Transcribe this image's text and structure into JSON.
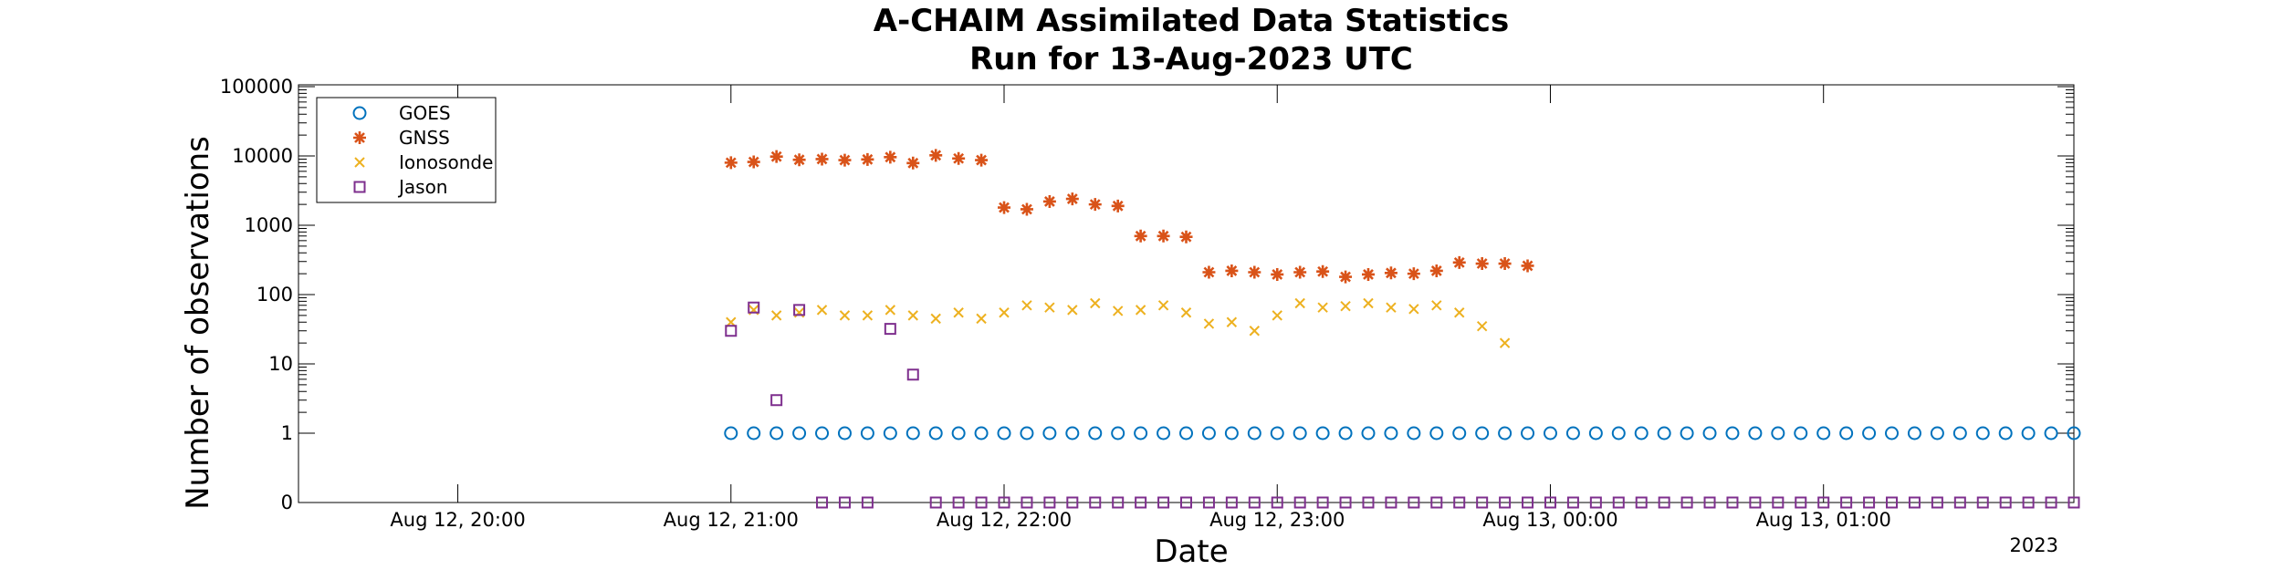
{
  "chart_data": {
    "type": "scatter",
    "title": "A-CHAIM Assimilated Data Statistics",
    "subtitle": "Run for 13-Aug-2023 UTC",
    "xlabel": "Date",
    "ylabel": "Number of observations",
    "x_year_label": "2023",
    "y_scale": "log",
    "y_zero_baseline": true,
    "grid": false,
    "legend_position": "top-left",
    "xlim": [
      "2023-08-12 19:25",
      "2023-08-13 01:55"
    ],
    "ylim": [
      0,
      100000
    ],
    "x_ticks": [
      "2023-08-12 20:00",
      "2023-08-12 21:00",
      "2023-08-12 22:00",
      "2023-08-12 23:00",
      "2023-08-13 00:00",
      "2023-08-13 01:00"
    ],
    "x_tick_labels": [
      "Aug 12, 20:00",
      "Aug 12, 21:00",
      "Aug 12, 22:00",
      "Aug 12, 23:00",
      "Aug 13, 00:00",
      "Aug 13, 01:00"
    ],
    "y_ticks": [
      0,
      1,
      10,
      100,
      1000,
      10000,
      100000
    ],
    "y_tick_labels": [
      "0",
      "1",
      "10",
      "100",
      "1000",
      "10000",
      "100000"
    ],
    "series": [
      {
        "name": "GOES",
        "marker": "circle",
        "color": "#0072BD",
        "x": [
          "2023-08-12 21:00",
          "2023-08-12 21:05",
          "2023-08-12 21:10",
          "2023-08-12 21:15",
          "2023-08-12 21:20",
          "2023-08-12 21:25",
          "2023-08-12 21:30",
          "2023-08-12 21:35",
          "2023-08-12 21:40",
          "2023-08-12 21:45",
          "2023-08-12 21:50",
          "2023-08-12 21:55",
          "2023-08-12 22:00",
          "2023-08-12 22:05",
          "2023-08-12 22:10",
          "2023-08-12 22:15",
          "2023-08-12 22:20",
          "2023-08-12 22:25",
          "2023-08-12 22:30",
          "2023-08-12 22:35",
          "2023-08-12 22:40",
          "2023-08-12 22:45",
          "2023-08-12 22:50",
          "2023-08-12 22:55",
          "2023-08-12 23:00",
          "2023-08-12 23:05",
          "2023-08-12 23:10",
          "2023-08-12 23:15",
          "2023-08-12 23:20",
          "2023-08-12 23:25",
          "2023-08-12 23:30",
          "2023-08-12 23:35",
          "2023-08-12 23:40",
          "2023-08-12 23:45",
          "2023-08-12 23:50",
          "2023-08-12 23:55",
          "2023-08-13 00:00",
          "2023-08-13 00:05",
          "2023-08-13 00:10",
          "2023-08-13 00:15",
          "2023-08-13 00:20",
          "2023-08-13 00:25",
          "2023-08-13 00:30",
          "2023-08-13 00:35",
          "2023-08-13 00:40",
          "2023-08-13 00:45",
          "2023-08-13 00:50",
          "2023-08-13 00:55",
          "2023-08-13 01:00",
          "2023-08-13 01:05",
          "2023-08-13 01:10",
          "2023-08-13 01:15",
          "2023-08-13 01:20",
          "2023-08-13 01:25",
          "2023-08-13 01:30",
          "2023-08-13 01:35",
          "2023-08-13 01:40",
          "2023-08-13 01:45",
          "2023-08-13 01:50",
          "2023-08-13 01:55"
        ],
        "y": [
          1,
          1,
          1,
          1,
          1,
          1,
          1,
          1,
          1,
          1,
          1,
          1,
          1,
          1,
          1,
          1,
          1,
          1,
          1,
          1,
          1,
          1,
          1,
          1,
          1,
          1,
          1,
          1,
          1,
          1,
          1,
          1,
          1,
          1,
          1,
          1,
          1,
          1,
          1,
          1,
          1,
          1,
          1,
          1,
          1,
          1,
          1,
          1,
          1,
          1,
          1,
          1,
          1,
          1,
          1,
          1,
          1,
          1,
          1,
          1
        ]
      },
      {
        "name": "GNSS",
        "marker": "asterisk",
        "color": "#D95319",
        "x": [
          "2023-08-12 21:00",
          "2023-08-12 21:05",
          "2023-08-12 21:10",
          "2023-08-12 21:15",
          "2023-08-12 21:20",
          "2023-08-12 21:25",
          "2023-08-12 21:30",
          "2023-08-12 21:35",
          "2023-08-12 21:40",
          "2023-08-12 21:45",
          "2023-08-12 21:50",
          "2023-08-12 21:55",
          "2023-08-12 22:00",
          "2023-08-12 22:05",
          "2023-08-12 22:10",
          "2023-08-12 22:15",
          "2023-08-12 22:20",
          "2023-08-12 22:25",
          "2023-08-12 22:30",
          "2023-08-12 22:35",
          "2023-08-12 22:40",
          "2023-08-12 22:45",
          "2023-08-12 22:50",
          "2023-08-12 22:55",
          "2023-08-12 23:00",
          "2023-08-12 23:05",
          "2023-08-12 23:10",
          "2023-08-12 23:15",
          "2023-08-12 23:20",
          "2023-08-12 23:25",
          "2023-08-12 23:30",
          "2023-08-12 23:35",
          "2023-08-12 23:40",
          "2023-08-12 23:45",
          "2023-08-12 23:50",
          "2023-08-12 23:55"
        ],
        "y": [
          8000,
          8200,
          9800,
          8800,
          9000,
          8700,
          8900,
          9600,
          7900,
          10200,
          9200,
          8700,
          1800,
          1700,
          2200,
          2400,
          2000,
          1900,
          700,
          700,
          680,
          210,
          220,
          210,
          195,
          210,
          215,
          180,
          195,
          205,
          200,
          220,
          290,
          280,
          280,
          260
        ]
      },
      {
        "name": "Ionosonde",
        "marker": "x",
        "color": "#EDB120",
        "x": [
          "2023-08-12 21:00",
          "2023-08-12 21:05",
          "2023-08-12 21:10",
          "2023-08-12 21:15",
          "2023-08-12 21:20",
          "2023-08-12 21:25",
          "2023-08-12 21:30",
          "2023-08-12 21:35",
          "2023-08-12 21:40",
          "2023-08-12 21:45",
          "2023-08-12 21:50",
          "2023-08-12 21:55",
          "2023-08-12 22:00",
          "2023-08-12 22:05",
          "2023-08-12 22:10",
          "2023-08-12 22:15",
          "2023-08-12 22:20",
          "2023-08-12 22:25",
          "2023-08-12 22:30",
          "2023-08-12 22:35",
          "2023-08-12 22:40",
          "2023-08-12 22:45",
          "2023-08-12 22:50",
          "2023-08-12 22:55",
          "2023-08-12 23:00",
          "2023-08-12 23:05",
          "2023-08-12 23:10",
          "2023-08-12 23:15",
          "2023-08-12 23:20",
          "2023-08-12 23:25",
          "2023-08-12 23:30",
          "2023-08-12 23:35",
          "2023-08-12 23:40",
          "2023-08-12 23:45",
          "2023-08-12 23:50"
        ],
        "y": [
          40,
          60,
          50,
          55,
          60,
          50,
          50,
          60,
          50,
          45,
          55,
          45,
          55,
          70,
          65,
          60,
          75,
          58,
          60,
          70,
          55,
          38,
          40,
          30,
          50,
          75,
          65,
          68,
          75,
          65,
          62,
          70,
          55,
          35,
          20
        ]
      },
      {
        "name": "Jason",
        "marker": "square",
        "color": "#7E2F8E",
        "x": [
          "2023-08-12 21:00",
          "2023-08-12 21:05",
          "2023-08-12 21:10",
          "2023-08-12 21:15",
          "2023-08-12 21:20",
          "2023-08-12 21:25",
          "2023-08-12 21:30",
          "2023-08-12 21:35",
          "2023-08-12 21:40",
          "2023-08-12 21:45",
          "2023-08-12 21:50",
          "2023-08-12 21:55",
          "2023-08-12 22:00",
          "2023-08-12 22:05",
          "2023-08-12 22:10",
          "2023-08-12 22:15",
          "2023-08-12 22:20",
          "2023-08-12 22:25",
          "2023-08-12 22:30",
          "2023-08-12 22:35",
          "2023-08-12 22:40",
          "2023-08-12 22:45",
          "2023-08-12 22:50",
          "2023-08-12 22:55",
          "2023-08-12 23:00",
          "2023-08-12 23:05",
          "2023-08-12 23:10",
          "2023-08-12 23:15",
          "2023-08-12 23:20",
          "2023-08-12 23:25",
          "2023-08-12 23:30",
          "2023-08-12 23:35",
          "2023-08-12 23:40",
          "2023-08-12 23:45",
          "2023-08-12 23:50",
          "2023-08-12 23:55",
          "2023-08-13 00:00",
          "2023-08-13 00:05",
          "2023-08-13 00:10",
          "2023-08-13 00:15",
          "2023-08-13 00:20",
          "2023-08-13 00:25",
          "2023-08-13 00:30",
          "2023-08-13 00:35",
          "2023-08-13 00:40",
          "2023-08-13 00:45",
          "2023-08-13 00:50",
          "2023-08-13 00:55",
          "2023-08-13 01:00",
          "2023-08-13 01:05",
          "2023-08-13 01:10",
          "2023-08-13 01:15",
          "2023-08-13 01:20",
          "2023-08-13 01:25",
          "2023-08-13 01:30",
          "2023-08-13 01:35",
          "2023-08-13 01:40",
          "2023-08-13 01:45",
          "2023-08-13 01:50",
          "2023-08-13 01:55"
        ],
        "y": [
          30,
          65,
          3,
          60,
          0,
          0,
          0,
          32,
          7,
          0,
          0,
          0,
          0,
          0,
          0,
          0,
          0,
          0,
          0,
          0,
          0,
          0,
          0,
          0,
          0,
          0,
          0,
          0,
          0,
          0,
          0,
          0,
          0,
          0,
          0,
          0,
          0,
          0,
          0,
          0,
          0,
          0,
          0,
          0,
          0,
          0,
          0,
          0,
          0,
          0,
          0,
          0,
          0,
          0,
          0,
          0,
          0,
          0,
          0,
          0
        ]
      }
    ]
  }
}
